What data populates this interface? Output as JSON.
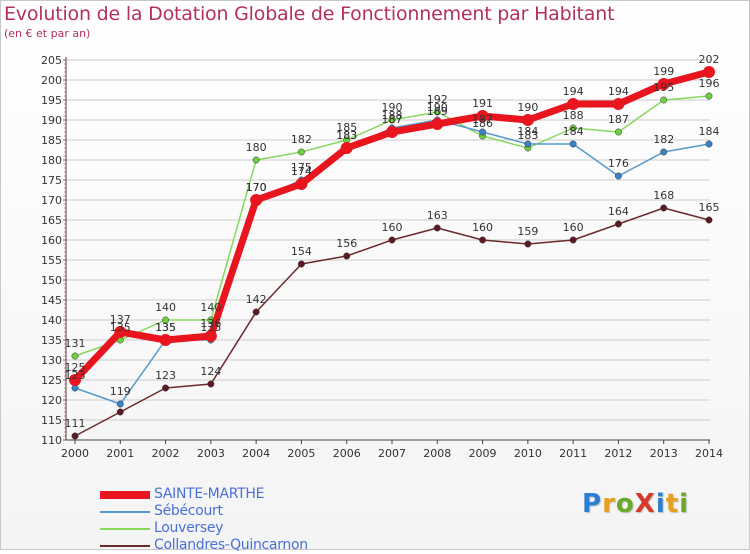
{
  "title": "Evolution de la Dotation Globale de Fonctionnement par Habitant",
  "subtitle": "(en € et par an)",
  "logo": {
    "text": "ProXiti",
    "colors": [
      "#2a7fd4",
      "#e8a020",
      "#6aaa2a",
      "#d83a2a",
      "#2a7fd4",
      "#e8a020",
      "#6aaa2a"
    ]
  },
  "colors": {
    "title": "#b5305a",
    "legend_text": "#4a6fd8",
    "grid": "#cccccc"
  },
  "chart_data": {
    "type": "line",
    "title": "Evolution de la Dotation Globale de Fonctionnement par Habitant",
    "subtitle": "(en € et par an)",
    "xlabel": "",
    "ylabel": "",
    "x": [
      2000,
      2001,
      2002,
      2003,
      2004,
      2005,
      2006,
      2007,
      2008,
      2009,
      2010,
      2011,
      2012,
      2013,
      2014
    ],
    "ylim": [
      110,
      205
    ],
    "yticks": [
      110,
      115,
      120,
      125,
      130,
      135,
      140,
      145,
      150,
      155,
      160,
      165,
      170,
      175,
      180,
      185,
      190,
      195,
      200,
      205
    ],
    "grid": true,
    "legend_position": "bottom-left",
    "series": [
      {
        "name": "SAINTE-MARTHE",
        "color": "#e8141e",
        "marker": "#e8141e",
        "width": 7,
        "values": [
          125,
          137,
          135,
          136,
          170,
          174,
          183,
          187,
          189,
          191,
          190,
          194,
          194,
          199,
          202
        ],
        "labels": [
          "125",
          "137",
          "135",
          "136",
          "170",
          "174",
          "183",
          "187",
          "189",
          "191",
          "190",
          "194",
          "194",
          "199",
          "202"
        ],
        "label_pos": [
          "above",
          "above",
          "above",
          "above",
          "above",
          "above",
          "above",
          "above",
          "above",
          "above",
          "above",
          "above",
          "above",
          "above",
          "above"
        ]
      },
      {
        "name": "Sébécourt",
        "color": "#5599cc",
        "marker": "#3b82c4",
        "width": 1.5,
        "values": [
          123,
          119,
          135,
          135,
          170,
          175,
          183,
          188,
          190,
          187,
          184,
          184,
          176,
          182,
          184
        ],
        "labels": [
          "123",
          "119",
          "135",
          "135",
          "170",
          "175",
          "183",
          "188",
          "190",
          "187",
          "184",
          "184",
          "176",
          "182",
          "184"
        ],
        "label_pos": [
          "above",
          "above",
          "above",
          "above",
          "above",
          "above",
          "above",
          "above",
          "above",
          "above",
          "above",
          "above",
          "above",
          "above",
          "above"
        ]
      },
      {
        "name": "Louversey",
        "color": "#88d860",
        "marker": "#6fcf3f",
        "width": 1.5,
        "values": [
          131,
          135,
          140,
          140,
          180,
          182,
          185,
          190,
          192,
          186,
          183,
          188,
          187,
          195,
          196
        ],
        "labels": [
          "131",
          "135",
          "140",
          "140",
          "180",
          "182",
          "185",
          "190",
          "192",
          "186",
          "183",
          "188",
          "187",
          "195",
          "196"
        ],
        "label_pos": [
          "above",
          "above",
          "above",
          "above",
          "above",
          "above",
          "above",
          "above",
          "above",
          "above",
          "above",
          "above",
          "above",
          "above",
          "above"
        ]
      },
      {
        "name": "Collandres-Quincarnon",
        "color": "#6b2a2e",
        "marker": "#5a1c20",
        "width": 1.5,
        "values": [
          111,
          117,
          123,
          124,
          142,
          154,
          156,
          160,
          163,
          160,
          159,
          160,
          164,
          168,
          165
        ],
        "labels": [
          "111",
          "",
          "123",
          "124",
          "142",
          "154",
          "156",
          "160",
          "163",
          "160",
          "159",
          "160",
          "164",
          "168",
          "165"
        ],
        "label_pos": [
          "above",
          "above",
          "above",
          "above",
          "above",
          "above",
          "above",
          "above",
          "above",
          "above",
          "above",
          "above",
          "above",
          "above",
          "above"
        ]
      }
    ]
  }
}
